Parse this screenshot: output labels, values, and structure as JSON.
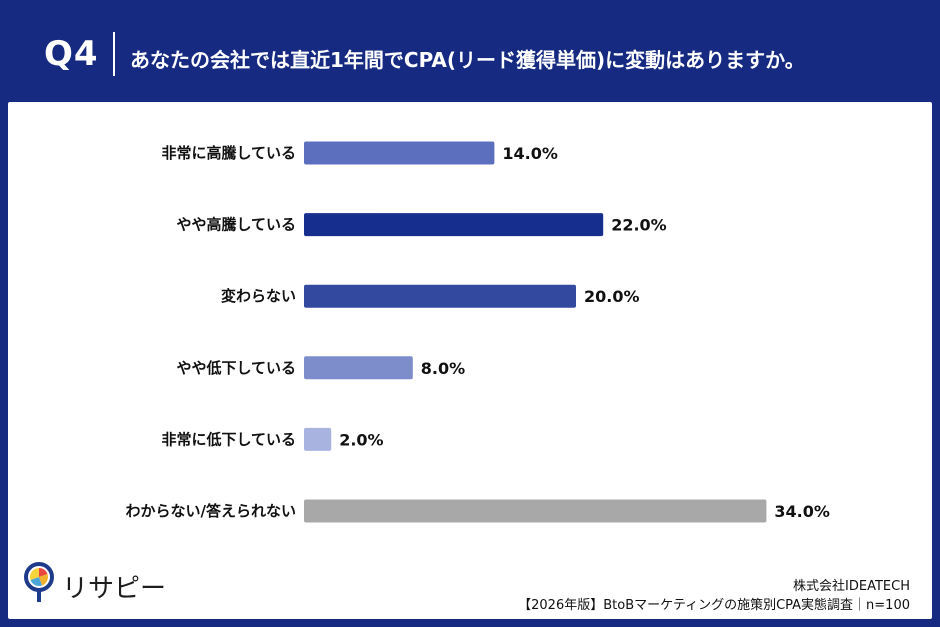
{
  "header": {
    "question_number": "Q4",
    "question_text": "あなたの会社では直近1年間でCPA(リード獲得単価)に変動はありますか。"
  },
  "chart_data": {
    "type": "bar",
    "orientation": "horizontal",
    "categories": [
      "非常に高騰している",
      "やや高騰している",
      "変わらない",
      "やや低下している",
      "非常に低下している",
      "わからない/答えられない"
    ],
    "values": [
      14.0,
      22.0,
      20.0,
      8.0,
      2.0,
      34.0
    ],
    "value_labels": [
      "14.0%",
      "22.0%",
      "20.0%",
      "8.0%",
      "2.0%",
      "34.0%"
    ],
    "colors": [
      "#5c6fbe",
      "#162f8f",
      "#3349a0",
      "#7d8dcc",
      "#a9b3e0",
      "#a8a8a8"
    ],
    "xlim": [
      0,
      40
    ],
    "grid": false,
    "title": "",
    "xlabel": "",
    "ylabel": ""
  },
  "footer": {
    "logo_text": "リサピー",
    "company": "株式会社IDEATECH",
    "survey": "【2026年版】BtoBマーケティングの施策別CPA実態調査｜n=100"
  }
}
